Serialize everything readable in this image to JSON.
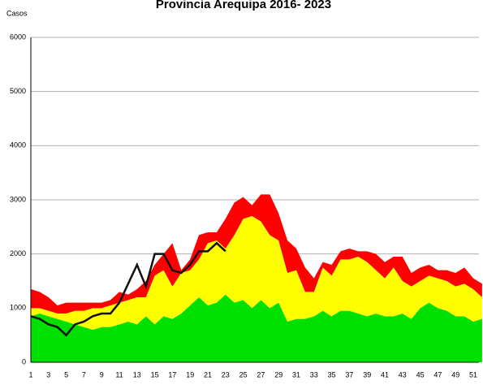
{
  "chart_data": {
    "type": "stacked-area-line",
    "title": "Provincia Arequipa  2016- 2023",
    "y_label": "Casos",
    "categories": [
      1,
      null,
      3,
      null,
      5,
      null,
      7,
      null,
      9,
      null,
      11,
      null,
      13,
      null,
      15,
      null,
      17,
      null,
      19,
      null,
      21,
      null,
      23,
      null,
      25,
      null,
      27,
      null,
      29,
      null,
      31,
      null,
      33,
      null,
      35,
      null,
      37,
      null,
      39,
      null,
      41,
      null,
      43,
      null,
      45,
      null,
      47,
      null,
      49,
      null,
      51,
      null
    ],
    "ylim": [
      0,
      6000
    ],
    "yticks": [
      0,
      1000,
      2000,
      3000,
      4000,
      5000,
      6000
    ],
    "grid": true,
    "series": [
      {
        "color": "#00e000",
        "stack": true,
        "values": [
          850,
          900,
          850,
          800,
          750,
          700,
          650,
          600,
          650,
          650,
          700,
          750,
          700,
          850,
          700,
          850,
          800,
          900,
          1050,
          1200,
          1050,
          1100,
          1250,
          1100,
          1150,
          1000,
          1150,
          1000,
          1100,
          750,
          800,
          800,
          850,
          950,
          850,
          950,
          950,
          900,
          850,
          900,
          850,
          850,
          900,
          800,
          1000,
          1100,
          1000,
          950,
          850,
          850,
          750,
          800
        ]
      },
      {
        "color": "#ffff00",
        "stack": true,
        "values": [
          150,
          100,
          100,
          100,
          150,
          250,
          300,
          400,
          350,
          400,
          400,
          400,
          500,
          350,
          900,
          850,
          600,
          750,
          650,
          700,
          1150,
          1150,
          850,
          1250,
          1500,
          1700,
          1450,
          1350,
          1150,
          900,
          900,
          500,
          450,
          800,
          750,
          950,
          950,
          1050,
          1000,
          800,
          700,
          900,
          600,
          600,
          500,
          500,
          550,
          550,
          550,
          600,
          600,
          400
        ]
      },
      {
        "color": "#ff0000",
        "stack": true,
        "values": [
          350,
          300,
          250,
          150,
          200,
          150,
          150,
          100,
          100,
          100,
          200,
          100,
          150,
          300,
          200,
          300,
          800,
          50,
          200,
          450,
          200,
          150,
          550,
          600,
          400,
          200,
          500,
          750,
          500,
          600,
          400,
          450,
          250,
          100,
          200,
          150,
          200,
          100,
          200,
          300,
          300,
          200,
          450,
          250,
          250,
          200,
          150,
          200,
          250,
          300,
          200,
          250
        ]
      },
      {
        "color": "#111111",
        "stack": false,
        "values": [
          850,
          800,
          700,
          650,
          500,
          700,
          750,
          850,
          900,
          900,
          1100,
          1450,
          1800,
          1400,
          2000,
          2000,
          1700,
          1650,
          1800,
          2050,
          2050,
          2200,
          2050,
          null,
          null,
          null,
          null,
          null,
          null,
          null,
          null,
          null,
          null,
          null,
          null,
          null,
          null,
          null,
          null,
          null,
          null,
          null,
          null,
          null,
          null,
          null,
          null,
          null,
          null,
          null,
          null,
          null
        ]
      }
    ]
  }
}
